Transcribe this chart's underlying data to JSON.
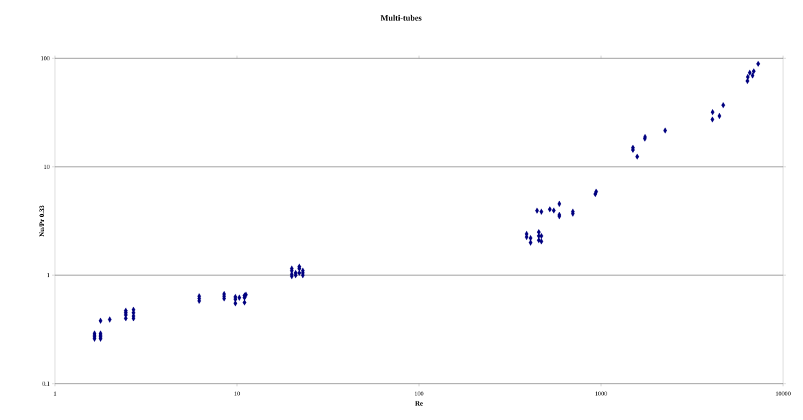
{
  "chart_data": {
    "type": "scatter",
    "title": "Multi-tubes",
    "xlabel": "Re",
    "ylabel": "Nu/Pr 0.33",
    "log": "xy",
    "grid": "y",
    "marker": "diamond",
    "xlim": [
      1,
      10000
    ],
    "ylim": [
      0.1,
      100
    ],
    "xticks": [
      1,
      10,
      100,
      1000,
      10000
    ],
    "yticks": [
      0.1,
      1,
      10,
      100
    ],
    "series": [
      {
        "color": "#000080",
        "x": [
          1.65,
          1.65,
          1.65,
          1.65,
          1.78,
          1.78,
          1.78,
          1.78,
          1.78,
          2.0,
          2.45,
          2.45,
          2.45,
          2.45,
          2.7,
          2.7,
          2.7,
          2.7,
          6.2,
          6.2,
          6.2,
          8.5,
          8.5,
          8.5,
          9.8,
          9.8,
          9.8,
          10.3,
          11,
          11,
          11,
          11.2,
          20,
          20,
          20,
          20,
          21,
          21,
          22,
          22,
          22,
          23,
          23,
          23,
          390,
          390,
          410,
          410,
          455,
          455,
          455,
          470,
          470,
          445,
          470,
          523,
          550,
          590,
          590,
          590,
          700,
          700,
          930,
          940,
          1497,
          1497,
          1580,
          1740,
          1745,
          2250,
          4090,
          4100,
          4470,
          4690,
          6370,
          6400,
          6560,
          6800,
          6900,
          7300
        ],
        "values": [
          0.29,
          0.27,
          0.26,
          0.28,
          0.29,
          0.27,
          0.26,
          0.28,
          0.38,
          0.39,
          0.47,
          0.45,
          0.43,
          0.4,
          0.48,
          0.45,
          0.42,
          0.4,
          0.64,
          0.61,
          0.58,
          0.67,
          0.64,
          0.61,
          0.63,
          0.6,
          0.55,
          0.62,
          0.65,
          0.62,
          0.56,
          0.66,
          1.15,
          1.1,
          1.02,
          0.98,
          1.05,
          1.0,
          1.2,
          1.15,
          1.05,
          1.1,
          1.05,
          1.0,
          2.4,
          2.25,
          2.2,
          2.0,
          2.5,
          2.3,
          2.1,
          2.3,
          2.05,
          3.94,
          3.85,
          4.05,
          3.95,
          4.55,
          3.6,
          3.5,
          3.85,
          3.7,
          5.6,
          5.9,
          15.0,
          14.3,
          12.4,
          18.2,
          18.8,
          21.6,
          27.3,
          31.9,
          29.4,
          37,
          61.8,
          67.3,
          73.7,
          69.5,
          76,
          89
        ]
      }
    ]
  }
}
